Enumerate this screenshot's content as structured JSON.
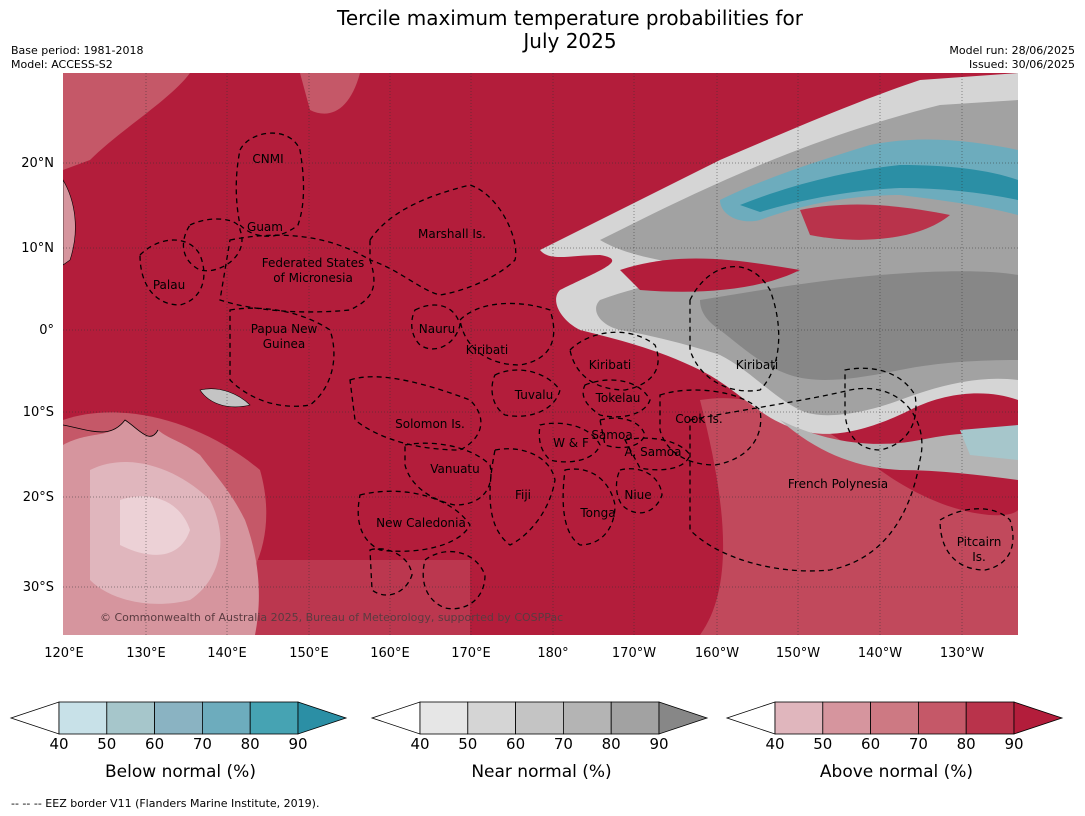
{
  "title_line1": "Tercile maximum temperature probabilities for",
  "title_line2": "July 2025",
  "base_period": "Base period: 1981-2018",
  "model": "Model: ACCESS-S2",
  "model_run": "Model run: 28/06/2025",
  "issued": "Issued: 30/06/2025",
  "credit": "© Commonwealth of Australia 2025, Bureau of Meteorology, supported by COSPPac",
  "footnote": "-- -- -- EEZ border V11 (Flanders Marine Institute, 2019).",
  "axes": {
    "lat_ticks": [
      "20°N",
      "10°N",
      "0°",
      "10°S",
      "20°S",
      "30°S"
    ],
    "lon_ticks": [
      "120°E",
      "130°E",
      "140°E",
      "150°E",
      "160°E",
      "170°E",
      "180°",
      "170°W",
      "160°W",
      "150°W",
      "140°W",
      "130°W"
    ]
  },
  "regions": [
    {
      "name": "CNMI"
    },
    {
      "name": "Guam"
    },
    {
      "name": "Marshall Is."
    },
    {
      "name": "Federated States"
    },
    {
      "name": "of Micronesia"
    },
    {
      "name": "Palau"
    },
    {
      "name": "Papua New"
    },
    {
      "name": "Guinea"
    },
    {
      "name": "Nauru"
    },
    {
      "name": "Kiribati"
    },
    {
      "name": "Kiribati"
    },
    {
      "name": "Kiribati"
    },
    {
      "name": "Tuvalu"
    },
    {
      "name": "Tokelau"
    },
    {
      "name": "Solomon Is."
    },
    {
      "name": "Cook Is."
    },
    {
      "name": "W & F"
    },
    {
      "name": "Samoa"
    },
    {
      "name": "A. Samoa"
    },
    {
      "name": "Vanuatu"
    },
    {
      "name": "Fiji"
    },
    {
      "name": "Niue"
    },
    {
      "name": "French Polynesia"
    },
    {
      "name": "Tonga"
    },
    {
      "name": "New Caledonia"
    },
    {
      "name": "Pitcairn"
    },
    {
      "name": "Is."
    }
  ],
  "colorbars": [
    {
      "title": "Below normal (%)",
      "ticks": [
        "40",
        "50",
        "60",
        "70",
        "80",
        "90"
      ],
      "colors": [
        "#ffffff",
        "#c8e1e8",
        "#a6c6cb",
        "#8ab3c2",
        "#6dacbd",
        "#46a3b3",
        "#2b8fa5"
      ]
    },
    {
      "title": "Near normal (%)",
      "ticks": [
        "40",
        "50",
        "60",
        "70",
        "80",
        "90"
      ],
      "colors": [
        "#ffffff",
        "#e6e6e6",
        "#d5d5d5",
        "#c4c4c4",
        "#b4b4b4",
        "#a2a2a2",
        "#878787"
      ]
    },
    {
      "title": "Above normal (%)",
      "ticks": [
        "40",
        "50",
        "60",
        "70",
        "80",
        "90"
      ],
      "colors": [
        "#ffffff",
        "#e0b6bd",
        "#d6959e",
        "#cd7983",
        "#c55868",
        "#b9334b",
        "#b31d3b"
      ]
    }
  ]
}
